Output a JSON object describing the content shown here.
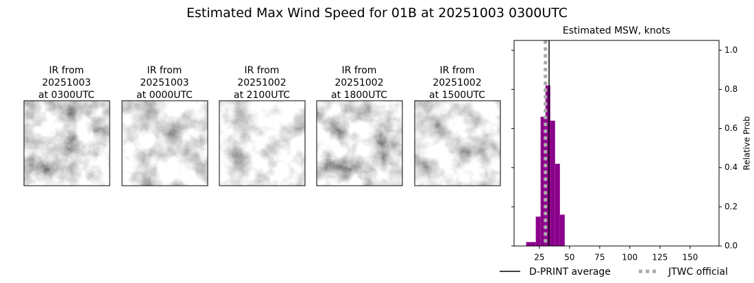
{
  "title": "Estimated Max Wind Speed for 01B at 20251003 0300UTC",
  "panels": [
    {
      "lines": [
        "IR from",
        "20251003",
        "at 0300UTC"
      ]
    },
    {
      "lines": [
        "IR from",
        "20251003",
        "at 0000UTC"
      ]
    },
    {
      "lines": [
        "IR from",
        "20251002",
        "at 2100UTC"
      ]
    },
    {
      "lines": [
        "IR from",
        "20251002",
        "at 1800UTC"
      ]
    },
    {
      "lines": [
        "IR from",
        "20251002",
        "at 1500UTC"
      ]
    }
  ],
  "chart_data": {
    "type": "histogram",
    "title": "Estimated MSW, knots",
    "y_label": "Relative Prob",
    "bins": [
      14,
      18,
      22,
      26,
      30,
      34,
      38,
      42,
      46
    ],
    "values": [
      0.02,
      0.02,
      0.15,
      0.66,
      0.82,
      0.64,
      0.42,
      0.16
    ],
    "color": "#8b008b",
    "xlim": [
      4,
      174
    ],
    "xticks": [
      25,
      50,
      75,
      100,
      125,
      150
    ],
    "ylim": [
      0,
      1.05
    ],
    "yticks": [
      {
        "value": 0,
        "label": "0.0"
      },
      0.2,
      0.4,
      0.6,
      0.8,
      {
        "value": 1,
        "label": "1.0"
      }
    ],
    "lines": [
      {
        "name": "D-PRINT average",
        "value": 33,
        "color": "#000000",
        "style": "solid"
      },
      {
        "name": "JTWC official",
        "value": 30,
        "color": "#aaaaaa",
        "style": "dotted"
      }
    ]
  }
}
